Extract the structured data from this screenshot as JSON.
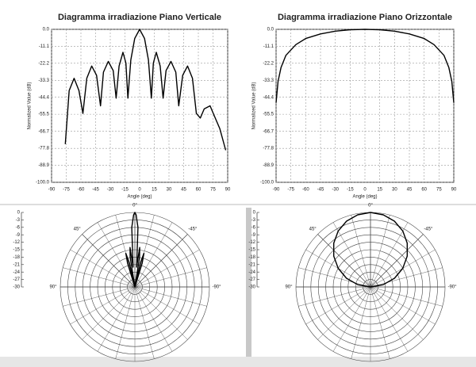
{
  "chart_data": [
    {
      "type": "line",
      "title": "Diagramma irradiazione  Piano Verticale",
      "x_label": "Angle (deg)",
      "y_label": "Normalized Value (dB)",
      "x": [
        -76,
        -72,
        -67,
        -62,
        -58,
        -54,
        -49,
        -44,
        -40,
        -37,
        -32,
        -27,
        -24,
        -21,
        -17,
        -14,
        -12,
        -9,
        -5,
        0,
        5,
        9,
        12,
        14,
        17,
        21,
        24,
        27,
        32,
        37,
        40,
        44,
        49,
        54,
        58,
        62,
        66,
        72,
        76,
        82,
        88
      ],
      "values": [
        -75,
        -40,
        -32,
        -40,
        -55,
        -32,
        -24,
        -30,
        -50,
        -28,
        -21,
        -27,
        -45,
        -24,
        -15,
        -22,
        -45,
        -20,
        -6,
        0,
        -6,
        -20,
        -45,
        -22,
        -15,
        -24,
        -45,
        -27,
        -21,
        -28,
        -50,
        -30,
        -24,
        -32,
        -55,
        -58,
        -52,
        -50,
        -56,
        -65,
        -79
      ],
      "color": "#000000",
      "xlim": [
        -90,
        90
      ],
      "xticks": [
        -90,
        -75,
        -60,
        -45,
        -30,
        -15,
        0,
        15,
        30,
        45,
        60,
        75,
        90
      ],
      "ylim": [
        -100,
        0
      ],
      "yticks": [
        {
          "value": 0,
          "label": "0.0"
        },
        -11.1,
        -22.2,
        -33.3,
        -44.4,
        -55.5,
        -66.7,
        -77.8,
        -88.9,
        {
          "value": -100,
          "label": "-100.0"
        }
      ],
      "grid": true
    },
    {
      "type": "line",
      "title": "Diagramma irradiazione  Piano Orizzontale",
      "x_label": "Angle (deg)",
      "y_label": "Normalized Value (dB)",
      "x": [
        -90,
        -88,
        -85,
        -80,
        -70,
        -60,
        -45,
        -30,
        -15,
        0,
        15,
        30,
        45,
        60,
        70,
        80,
        85,
        88,
        90
      ],
      "values": [
        -48,
        -34,
        -25,
        -17,
        -10,
        -6,
        -3,
        -1.2,
        -0.3,
        0,
        -0.3,
        -1.2,
        -3,
        -6,
        -10,
        -17,
        -25,
        -34,
        -48
      ],
      "color": "#000000",
      "xlim": [
        -90,
        90
      ],
      "xticks": [
        -90,
        -75,
        -60,
        -45,
        -30,
        -15,
        0,
        15,
        30,
        45,
        60,
        75,
        90
      ],
      "ylim": [
        -100,
        0
      ],
      "yticks": [
        {
          "value": 0,
          "label": "0.0"
        },
        -11.1,
        -22.2,
        -33.3,
        -44.4,
        -55.5,
        -66.7,
        -77.8,
        -88.9,
        {
          "value": -100,
          "label": "-100.0"
        }
      ],
      "grid": true
    },
    {
      "type": "polar",
      "theta": [
        -20,
        -17,
        -15,
        -13,
        -11,
        -9,
        -7,
        -5,
        -3,
        -1,
        0,
        1,
        3,
        5,
        7,
        9,
        11,
        13,
        15,
        17,
        20
      ],
      "values": [
        -30,
        -20,
        -16,
        -20,
        -30,
        -18,
        -14,
        -22,
        -6,
        -1,
        0,
        -1,
        -6,
        -22,
        -14,
        -18,
        -30,
        -20,
        -16,
        -20,
        -30
      ],
      "color": "#000000",
      "rlim": [
        -30,
        0
      ],
      "rticks": [
        0,
        -3,
        -6,
        -9,
        -12,
        -15,
        -18,
        -21,
        -24,
        -27,
        -30
      ],
      "thetaticks": [
        {
          "value": 0,
          "label": "0°"
        },
        {
          "value": 45,
          "label": "45°"
        },
        {
          "value": -45,
          "label": "-45°"
        },
        {
          "value": 90,
          "label": "90°"
        },
        {
          "value": -90,
          "label": "-90°"
        }
      ]
    },
    {
      "type": "polar",
      "theta": [
        -90,
        -80,
        -70,
        -60,
        -50,
        -40,
        -30,
        -20,
        -10,
        0,
        10,
        20,
        30,
        40,
        50,
        60,
        70,
        80,
        90
      ],
      "values": [
        -30,
        -24.8,
        -19.7,
        -15,
        -10.7,
        -7,
        -4,
        -1.8,
        -0.5,
        0,
        -0.5,
        -1.8,
        -4,
        -7,
        -10.7,
        -15,
        -19.7,
        -24.8,
        -30
      ],
      "color": "#000000",
      "rlim": [
        -30,
        0
      ],
      "rticks": [
        0,
        -3,
        -6,
        -9,
        -12,
        -15,
        -18,
        -21,
        -24,
        -27,
        -30
      ],
      "thetaticks": [
        {
          "value": 0,
          "label": "0°"
        },
        {
          "value": 45,
          "label": "45°"
        },
        {
          "value": -45,
          "label": "-45°"
        },
        {
          "value": 90,
          "label": "90°"
        },
        {
          "value": -90,
          "label": "-90°"
        }
      ]
    }
  ]
}
